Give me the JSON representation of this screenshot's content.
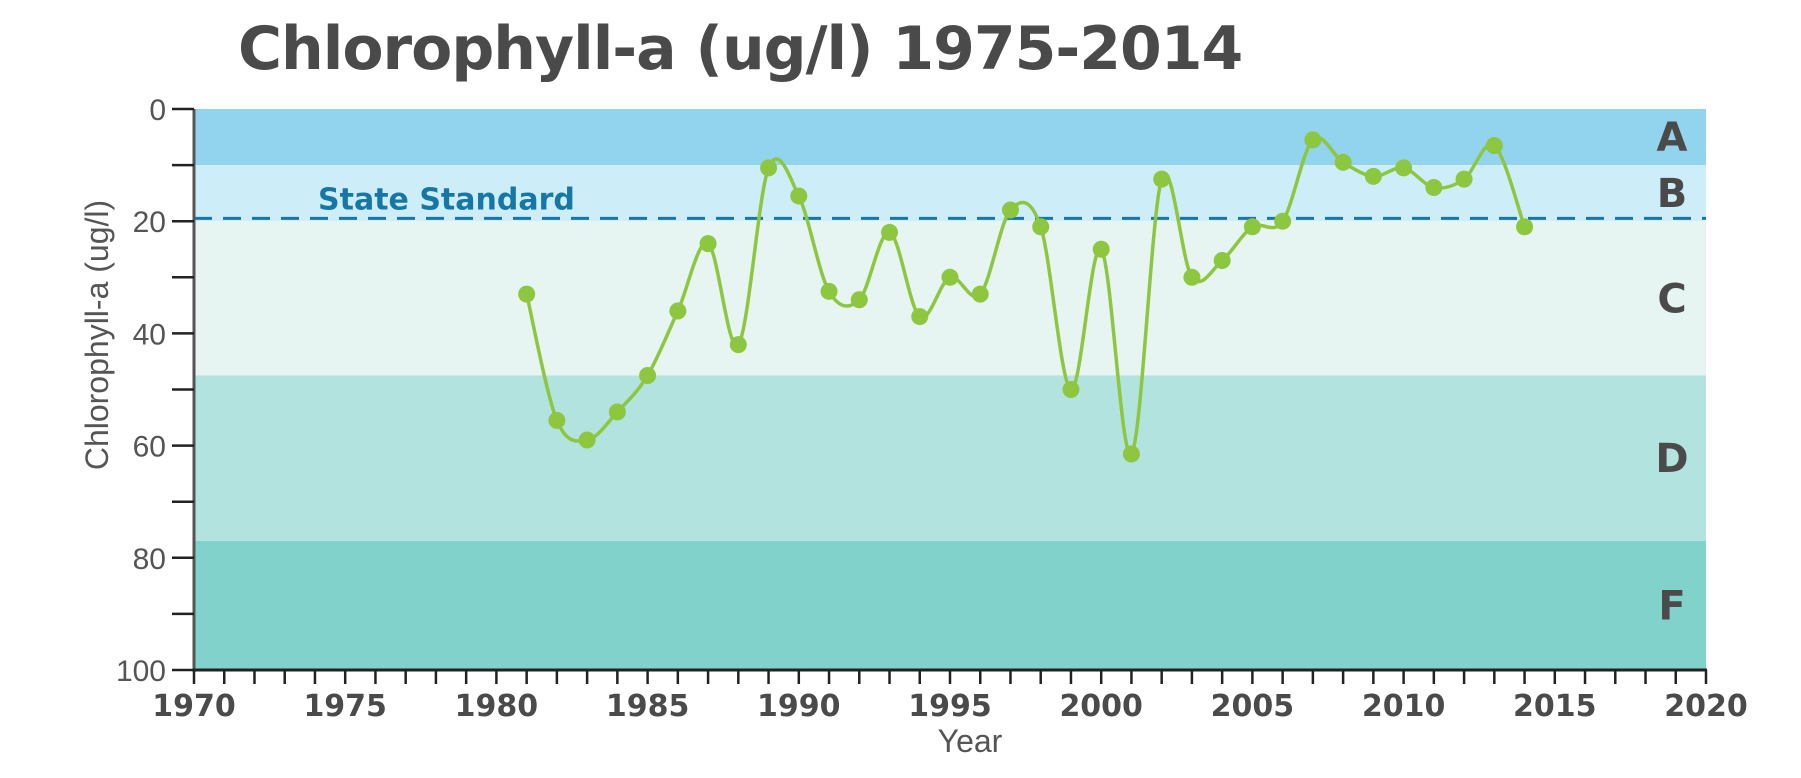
{
  "chart_data": {
    "type": "line",
    "title": "Chlorophyll-a (ug/l) 1975-2014",
    "xlabel": "Year",
    "ylabel": "Chlorophyll-a (ug/l)",
    "xlim": [
      1970,
      2020
    ],
    "ylim": [
      0,
      100
    ],
    "y_inverted": true,
    "x_ticks": [
      1970,
      1975,
      1980,
      1985,
      1990,
      1995,
      2000,
      2005,
      2010,
      2015,
      2020
    ],
    "y_ticks": [
      0,
      20,
      40,
      60,
      80,
      100
    ],
    "grid": false,
    "bands": [
      {
        "label": "A",
        "from": 0,
        "to": 10,
        "color": "#92d4ee"
      },
      {
        "label": "B",
        "from": 10,
        "to": 20,
        "color": "#cdeef8"
      },
      {
        "label": "C",
        "from": 20,
        "to": 47.5,
        "color": "#e6f4f2"
      },
      {
        "label": "D",
        "from": 47.5,
        "to": 77,
        "color": "#b2e3df"
      },
      {
        "label": "F",
        "from": 77,
        "to": 100,
        "color": "#80d2cb"
      }
    ],
    "reference_line": {
      "label": "State Standard",
      "value": 19.5,
      "color": "#1677a7"
    },
    "series": [
      {
        "color": "#8dc63f",
        "x": [
          1981,
          1982,
          1983,
          1984,
          1985,
          1986,
          1987,
          1988,
          1989,
          1990,
          1991,
          1992,
          1993,
          1994,
          1995,
          1996,
          1997,
          1998,
          1999,
          2000,
          2001,
          2002,
          2003,
          2004,
          2005,
          2006,
          2007,
          2008,
          2009,
          2010,
          2011,
          2012,
          2013,
          2014
        ],
        "values": [
          33,
          55.5,
          59,
          54,
          47.5,
          36,
          24,
          42,
          10.5,
          15.5,
          32.5,
          34,
          22,
          37,
          30,
          33,
          18,
          21,
          50,
          25,
          61.5,
          12.5,
          30,
          27,
          21,
          20,
          5.5,
          9.5,
          12,
          10.5,
          14,
          12.5,
          6.5,
          21
        ]
      }
    ]
  }
}
